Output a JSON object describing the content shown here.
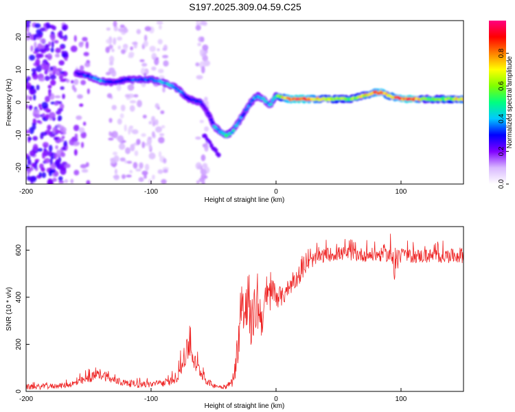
{
  "figure": {
    "title": "S197.2025.309.04.59.C25"
  },
  "chart_data": [
    {
      "type": "heatmap",
      "title": "S197.2025.309.04.59.C25",
      "xlabel": "Height of straight line (km)",
      "ylabel": "Frequency (Hz)",
      "xlim": [
        -200,
        150
      ],
      "ylim": [
        -25,
        25
      ],
      "xticks": [
        -200,
        -100,
        0,
        100
      ],
      "yticks": [
        -20,
        -10,
        0,
        10,
        20
      ],
      "colorbar": {
        "label": "Normalized spectral amplitude",
        "range": [
          0,
          1
        ],
        "ticks": [
          "0.0",
          "0.2",
          "0.4",
          "0.6",
          "0.8"
        ],
        "colors": [
          "#ffffff",
          "#d9b8ff",
          "#8000ff",
          "#0000ff",
          "#00c8ff",
          "#00ff80",
          "#80ff00",
          "#ffff00",
          "#ff8000",
          "#ff0000",
          "#ff0080"
        ]
      },
      "ridge_x": [
        -160,
        -150,
        -140,
        -130,
        -120,
        -110,
        -100,
        -90,
        -80,
        -70,
        -60,
        -55,
        -50,
        -45,
        -40,
        -35,
        -30,
        -25,
        -20,
        -15,
        -10,
        -5,
        0,
        10,
        20,
        40,
        60,
        70,
        80,
        85,
        90,
        100,
        110,
        120,
        130,
        140,
        150
      ],
      "ridge_y": [
        9,
        8,
        6.5,
        6,
        7,
        7,
        7,
        6,
        4.5,
        1,
        0,
        -3,
        -7,
        -9,
        -10,
        -9,
        -6,
        -3,
        0,
        2,
        1,
        -1,
        2,
        1,
        1,
        1,
        1,
        2,
        3,
        3,
        2,
        1,
        1,
        1,
        1,
        1,
        1
      ],
      "ridge_amplitude": [
        0.25,
        0.35,
        0.4,
        0.3,
        0.3,
        0.35,
        0.35,
        0.4,
        0.4,
        0.3,
        0.3,
        0.25,
        0.4,
        0.45,
        0.5,
        0.45,
        0.4,
        0.35,
        0.35,
        0.45,
        0.4,
        0.4,
        0.5,
        0.9,
        0.95,
        0.7,
        0.6,
        0.7,
        0.85,
        0.9,
        0.75,
        0.9,
        0.95,
        0.55,
        0.6,
        0.65,
        0.8
      ]
    },
    {
      "type": "line",
      "xlabel": "Height of straight line (km)",
      "ylabel": "SNR (10 * v/v)",
      "xlim": [
        -200,
        150
      ],
      "ylim": [
        0,
        700
      ],
      "xticks": [
        -200,
        -100,
        0,
        100
      ],
      "yticks": [
        0,
        200,
        400,
        600
      ],
      "series": [
        {
          "name": "SNR",
          "color": "#ee2222",
          "x": [
            -200,
            -190,
            -180,
            -170,
            -160,
            -150,
            -145,
            -140,
            -135,
            -130,
            -125,
            -120,
            -110,
            -100,
            -90,
            -85,
            -80,
            -75,
            -72,
            -70,
            -68,
            -65,
            -60,
            -55,
            -50,
            -45,
            -40,
            -35,
            -32,
            -30,
            -28,
            -25,
            -22,
            -20,
            -18,
            -15,
            -12,
            -10,
            -8,
            -5,
            -2,
            0,
            5,
            10,
            15,
            20,
            25,
            30,
            40,
            50,
            60,
            70,
            80,
            90,
            94,
            96,
            98,
            100,
            110,
            120,
            130,
            140,
            150
          ],
          "y": [
            18,
            20,
            22,
            25,
            35,
            55,
            65,
            75,
            60,
            45,
            40,
            35,
            30,
            30,
            35,
            40,
            60,
            110,
            160,
            190,
            180,
            120,
            80,
            40,
            25,
            20,
            20,
            40,
            120,
            240,
            300,
            350,
            320,
            280,
            330,
            360,
            320,
            330,
            380,
            400,
            430,
            410,
            400,
            440,
            470,
            500,
            540,
            560,
            580,
            585,
            585,
            580,
            580,
            580,
            570,
            520,
            560,
            575,
            575,
            575,
            575,
            575,
            580
          ],
          "noise": [
            12,
            12,
            12,
            12,
            15,
            20,
            22,
            25,
            20,
            15,
            15,
            15,
            15,
            15,
            15,
            15,
            25,
            40,
            50,
            60,
            55,
            40,
            25,
            15,
            10,
            10,
            10,
            20,
            60,
            100,
            120,
            120,
            110,
            100,
            100,
            110,
            90,
            90,
            80,
            70,
            60,
            55,
            40,
            40,
            35,
            35,
            30,
            30,
            30,
            30,
            30,
            30,
            30,
            30,
            70,
            120,
            60,
            30,
            30,
            30,
            30,
            30,
            35
          ]
        }
      ]
    }
  ]
}
